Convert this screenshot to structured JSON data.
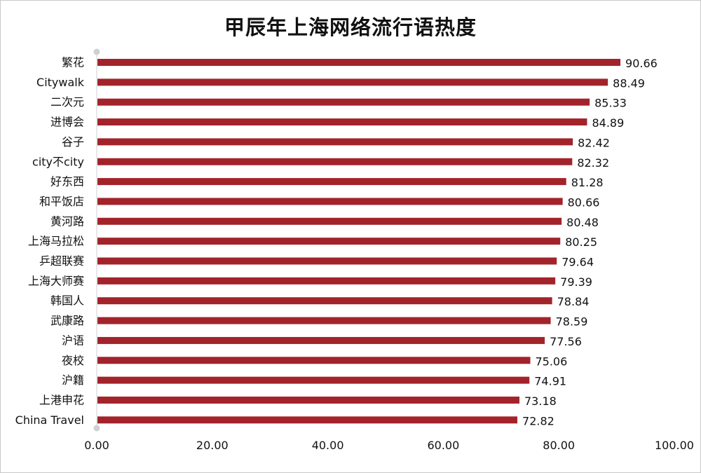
{
  "chart_data": {
    "type": "bar",
    "orientation": "horizontal",
    "title": "甲辰年上海网络流行语热度",
    "categories": [
      "繁花",
      "Citywalk",
      "二次元",
      "进博会",
      "谷子",
      "city不city",
      "好东西",
      "和平饭店",
      "黄河路",
      "上海马拉松",
      "乒超联赛",
      "上海大师赛",
      "韩国人",
      "武康路",
      "沪语",
      "夜校",
      "沪籍",
      "上港申花",
      "China Travel"
    ],
    "values": [
      90.66,
      88.49,
      85.33,
      84.89,
      82.42,
      82.32,
      81.28,
      80.66,
      80.48,
      80.25,
      79.64,
      79.39,
      78.84,
      78.59,
      77.56,
      75.06,
      74.91,
      73.18,
      72.82
    ],
    "value_labels": [
      "90.66",
      "88.49",
      "85.33",
      "84.89",
      "82.42",
      "82.32",
      "81.28",
      "80.66",
      "80.48",
      "80.25",
      "79.64",
      "79.39",
      "78.84",
      "78.59",
      "77.56",
      "75.06",
      "74.91",
      "73.18",
      "72.82"
    ],
    "xlim": [
      0,
      100
    ],
    "x_ticks": [
      "0.00",
      "20.00",
      "40.00",
      "60.00",
      "80.00",
      "100.00"
    ],
    "x_tick_values": [
      0,
      20,
      40,
      60,
      80,
      100
    ],
    "grid": false,
    "legend": "none",
    "bar_color": "#A3232B",
    "axis_color": "#d0d0d0"
  }
}
